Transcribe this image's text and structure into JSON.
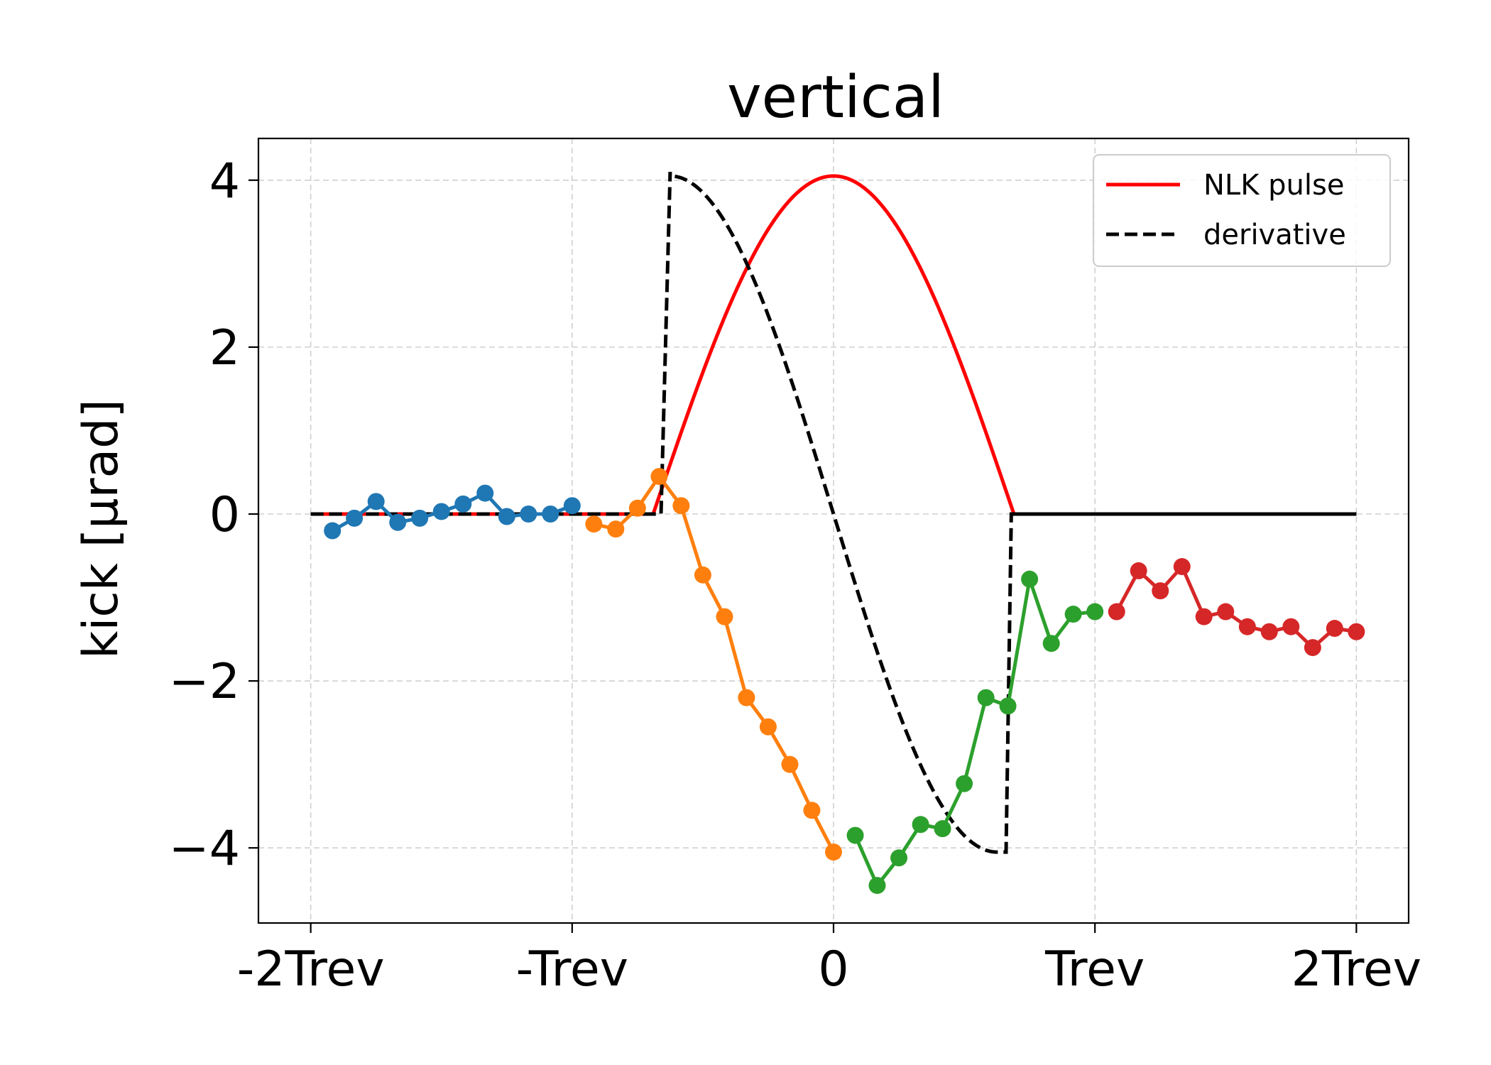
{
  "chart_data": {
    "type": "line",
    "title": "vertical",
    "xlabel": "",
    "ylabel": "kick [μrad]",
    "xlim": [
      -2.2,
      2.2
    ],
    "ylim": [
      -4.9,
      4.5
    ],
    "x_ticks": [
      {
        "value": -2,
        "label": "-2Trev"
      },
      {
        "value": -1,
        "label": "-Trev"
      },
      {
        "value": 0,
        "label": "0"
      },
      {
        "value": 1,
        "label": "Trev"
      },
      {
        "value": 2,
        "label": "2Trev"
      }
    ],
    "y_ticks": [
      {
        "value": 4,
        "label": "4"
      },
      {
        "value": 2,
        "label": "2"
      },
      {
        "value": 0,
        "label": "0"
      },
      {
        "value": -2,
        "label": "−2"
      },
      {
        "value": -4,
        "label": "−4"
      }
    ],
    "grid": true,
    "legend": {
      "position": "top-right",
      "entries": [
        "NLK pulse",
        "derivative"
      ]
    },
    "colors": {
      "pulse": "#ff0000",
      "derivative": "#000000",
      "segment_1": "#1f77b4",
      "segment_2": "#ff7f0e",
      "segment_3": "#2ca02c",
      "segment_4": "#d62728"
    },
    "pulse": {
      "name": "NLK pulse",
      "start": -0.69,
      "end": 0.69,
      "peak": 4.05,
      "x_range": [
        -2,
        2
      ]
    },
    "derivative": {
      "name": "derivative",
      "peak": 4.05
    },
    "measured_series": [
      {
        "x": [
          -1.917,
          -1.833,
          -1.75,
          -1.667,
          -1.583,
          -1.5,
          -1.417,
          -1.333,
          -1.25,
          -1.167,
          -1.083,
          -1.0
        ],
        "y": [
          -0.2,
          -0.05,
          0.15,
          -0.1,
          -0.05,
          0.03,
          0.12,
          0.25,
          -0.03,
          0.0,
          0.0,
          0.1
        ]
      },
      {
        "x": [
          -0.917,
          -0.833,
          -0.75,
          -0.667,
          -0.583,
          -0.5,
          -0.417,
          -0.333,
          -0.25,
          -0.167,
          -0.083,
          0.0
        ],
        "y": [
          -0.12,
          -0.18,
          0.07,
          0.45,
          0.1,
          -0.73,
          -1.23,
          -2.2,
          -2.55,
          -3.0,
          -3.55,
          -4.05
        ]
      },
      {
        "x": [
          0.083,
          0.167,
          0.25,
          0.333,
          0.417,
          0.5,
          0.583,
          0.667,
          0.75,
          0.833,
          0.917,
          1.0
        ],
        "y": [
          -3.85,
          -4.45,
          -4.12,
          -3.72,
          -3.77,
          -3.23,
          -2.2,
          -2.3,
          -0.78,
          -1.55,
          -1.2,
          -1.17
        ]
      },
      {
        "x": [
          1.083,
          1.167,
          1.25,
          1.333,
          1.417,
          1.5,
          1.583,
          1.667,
          1.75,
          1.833,
          1.917,
          2.0
        ],
        "y": [
          -1.17,
          -0.68,
          -0.92,
          -0.63,
          -1.23,
          -1.17,
          -1.35,
          -1.41,
          -1.35,
          -1.6,
          -1.37,
          -1.41
        ]
      }
    ]
  }
}
